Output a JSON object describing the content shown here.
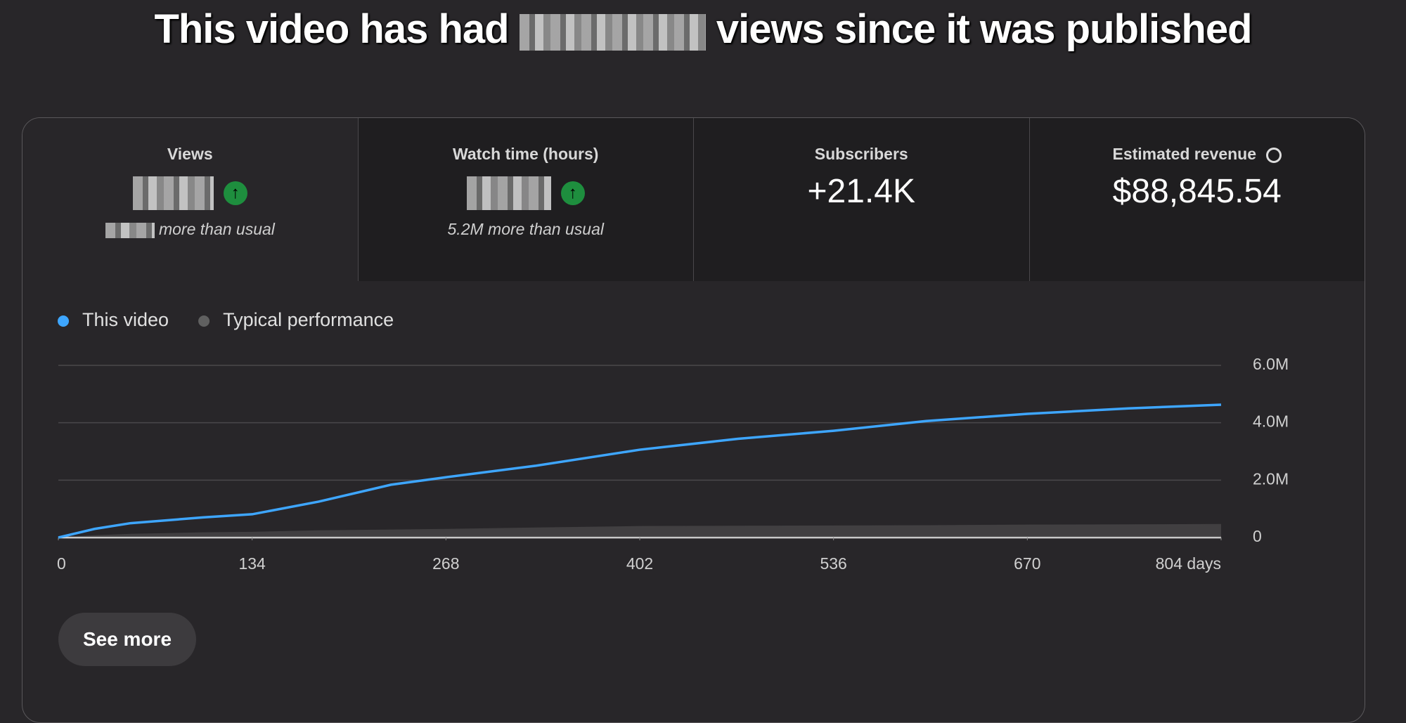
{
  "header": {
    "title_start": "This video has had",
    "title_end": "views since it was published"
  },
  "metrics": [
    {
      "label": "Views",
      "note": "more than usual"
    },
    {
      "label": "Watch time (hours)",
      "note": "5.2M more than usual"
    },
    {
      "label": "Subscribers",
      "value": "+21.4K"
    },
    {
      "label": "Estimated revenue",
      "value": "$88,845.54"
    }
  ],
  "chart_data": {
    "type": "line",
    "x": [
      0,
      25,
      50,
      100,
      134,
      180,
      230,
      268,
      330,
      402,
      470,
      536,
      600,
      670,
      740,
      804
    ],
    "series": [
      {
        "name": "This video",
        "color": "#3ea6ff",
        "values": [
          0,
          300000,
          500000,
          700000,
          810000,
          1250000,
          1840000,
          2100000,
          2500000,
          3060000,
          3440000,
          3720000,
          4060000,
          4310000,
          4500000,
          4630000
        ]
      },
      {
        "name": "Typical performance",
        "color": "#606060",
        "values": [
          0,
          80000,
          130000,
          180000,
          200000,
          250000,
          280000,
          300000,
          350000,
          400000,
          410000,
          420000,
          430000,
          450000,
          460000,
          470000
        ]
      }
    ],
    "xlim": [
      0,
      804
    ],
    "ylim": [
      0,
      6000000
    ],
    "xticks": [
      0,
      134,
      268,
      402,
      536,
      670,
      {
        "value": 804,
        "label": "804 days"
      }
    ],
    "yticks": [
      0,
      {
        "value": 2000000,
        "label": "2.0M"
      },
      {
        "value": 4000000,
        "label": "4.0M"
      },
      {
        "value": 6000000,
        "label": "6.0M"
      }
    ],
    "grid": true
  },
  "button": {
    "label": "See more"
  }
}
